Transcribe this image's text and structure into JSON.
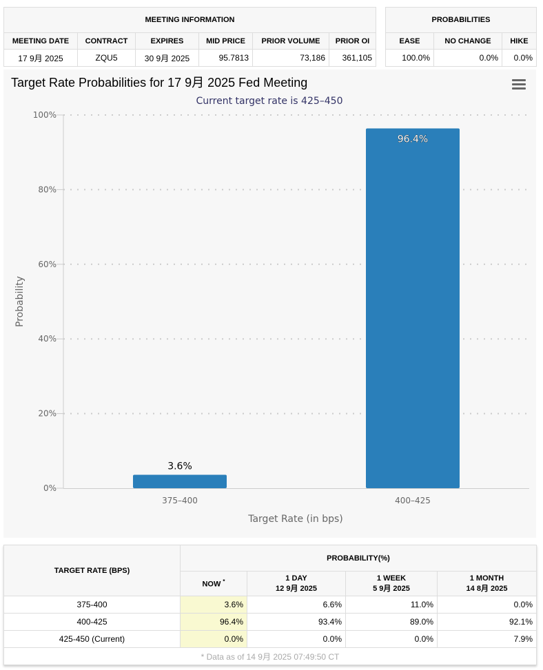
{
  "meeting_info": {
    "title": "MEETING INFORMATION",
    "headers": [
      "MEETING DATE",
      "CONTRACT",
      "EXPIRES",
      "MID PRICE",
      "PRIOR VOLUME",
      "PRIOR OI"
    ],
    "values": [
      "17 9月 2025",
      "ZQU5",
      "30 9月 2025",
      "95.7813",
      "73,186",
      "361,105"
    ]
  },
  "probabilities": {
    "title": "PROBABILITIES",
    "headers": [
      "EASE",
      "NO CHANGE",
      "HIKE"
    ],
    "values": [
      "100.0%",
      "0.0%",
      "0.0%"
    ]
  },
  "chart_data": {
    "type": "bar",
    "title": "Target Rate Probabilities for 17 9月 2025 Fed Meeting",
    "subtitle": "Current target rate is 425–450",
    "xlabel": "Target Rate (in bps)",
    "ylabel": "Probability",
    "categories": [
      "375–400",
      "400–425"
    ],
    "values": [
      3.6,
      96.4
    ],
    "data_labels": [
      "3.6%",
      "96.4%"
    ],
    "ylim": [
      0,
      100
    ],
    "yticks": [
      0,
      20,
      40,
      60,
      80,
      100
    ],
    "ytick_labels": [
      "0%",
      "20%",
      "40%",
      "60%",
      "80%",
      "100%"
    ],
    "grid": true,
    "bar_color": "#2a7fba",
    "menu_icon": "hamburger-menu-icon"
  },
  "prob_table": {
    "target_header": "TARGET RATE (BPS)",
    "group_header": "PROBABILITY(%)",
    "columns": [
      {
        "label": "NOW",
        "sup": "*",
        "date": ""
      },
      {
        "label": "1 DAY",
        "date": "12 9月 2025"
      },
      {
        "label": "1 WEEK",
        "date": "5 9月 2025"
      },
      {
        "label": "1 MONTH",
        "date": "14 8月 2025"
      }
    ],
    "rows": [
      {
        "rate": "375-400",
        "values": [
          "3.6%",
          "6.6%",
          "11.0%",
          "0.0%"
        ]
      },
      {
        "rate": "400-425",
        "values": [
          "96.4%",
          "93.4%",
          "89.0%",
          "92.1%"
        ]
      },
      {
        "rate": "425-450 (Current)",
        "values": [
          "0.0%",
          "0.0%",
          "0.0%",
          "7.9%"
        ]
      }
    ],
    "footnote": "* Data as of 14 9月 2025 07:49:50 CT"
  }
}
